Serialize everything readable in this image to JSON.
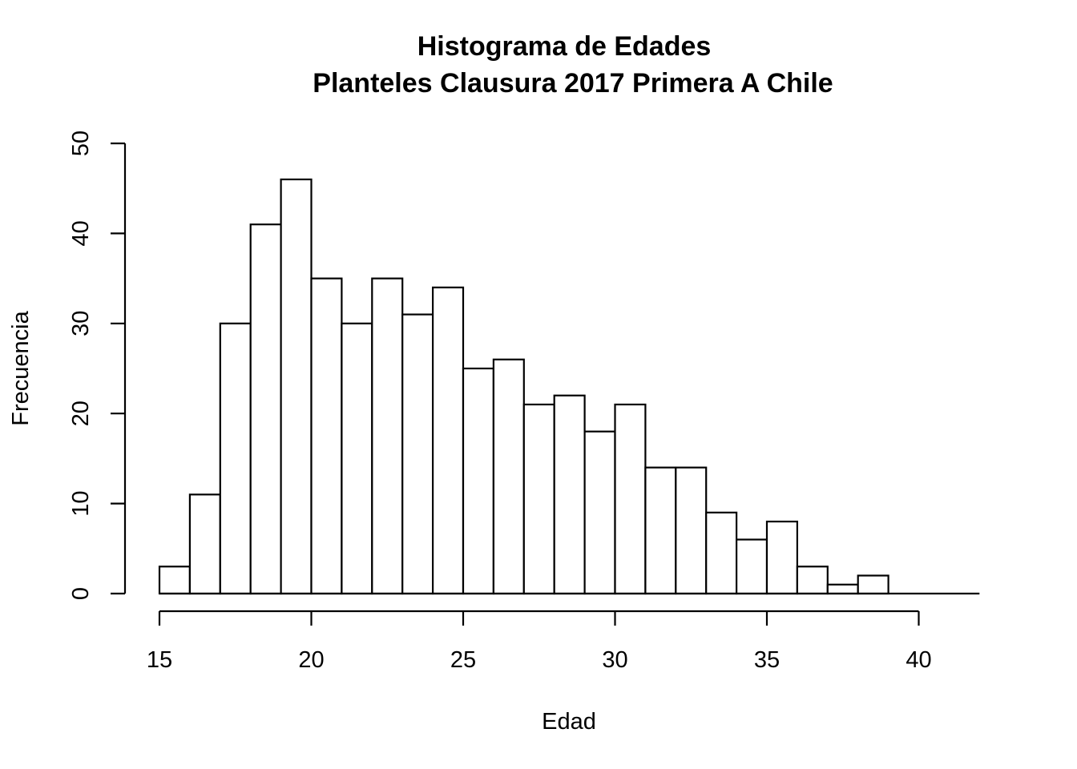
{
  "chart_data": {
    "type": "bar",
    "title": [
      "Histograma de Edades",
      "Planteles Clausura 2017 Primera A Chile"
    ],
    "xlabel": "Edad",
    "ylabel": "Frecuencia",
    "bin_edges": [
      15,
      16,
      17,
      18,
      19,
      20,
      21,
      22,
      23,
      24,
      25,
      26,
      27,
      28,
      29,
      30,
      31,
      32,
      33,
      34,
      35,
      36,
      37,
      38,
      39,
      40,
      41,
      42
    ],
    "values": [
      3,
      11,
      30,
      41,
      46,
      35,
      30,
      35,
      31,
      34,
      25,
      26,
      21,
      22,
      18,
      21,
      14,
      14,
      9,
      6,
      8,
      3,
      1,
      2,
      0,
      0,
      0
    ],
    "xticks": [
      15,
      20,
      25,
      30,
      35,
      40
    ],
    "xtick_labels": [
      "15",
      "20",
      "25",
      "30",
      "35",
      "40"
    ],
    "xlim": [
      15,
      42
    ],
    "yticks": [
      0,
      10,
      20,
      30,
      40,
      50
    ],
    "ytick_labels": [
      "0",
      "10",
      "20",
      "30",
      "40",
      "50"
    ],
    "ylim": [
      0,
      50
    ],
    "grid": false,
    "legend": false,
    "bar_fill": "#ffffff",
    "bar_stroke": "#000000"
  }
}
